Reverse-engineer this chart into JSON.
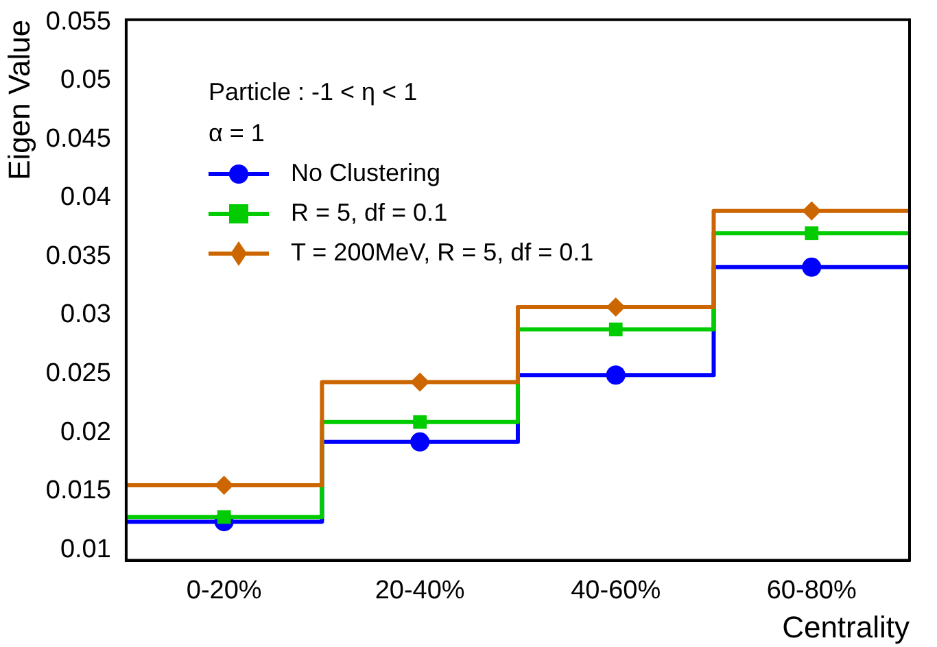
{
  "chart_data": {
    "type": "step",
    "xlabel": "Centrality",
    "ylabel": "Eigen Value",
    "categories": [
      "0-20%",
      "20-40%",
      "40-60%",
      "60-80%"
    ],
    "ylim": [
      0.0091,
      0.0552
    ],
    "yticks": [
      0.01,
      0.015,
      0.02,
      0.025,
      0.03,
      0.035,
      0.04,
      0.045,
      0.05,
      0.055
    ],
    "legend": "top left",
    "grid": false,
    "annotations": [
      "Particle : -1 < η < 1",
      "α = 1"
    ],
    "series": [
      {
        "name": "No Clustering",
        "color": "#0000ff",
        "marker": "circle",
        "values": [
          0.0124,
          0.0192,
          0.0249,
          0.0341
        ]
      },
      {
        "name": "R = 5, df = 0.1",
        "color": "#00cc00",
        "marker": "square",
        "values": [
          0.0128,
          0.0209,
          0.0288,
          0.037
        ]
      },
      {
        "name": "T = 200MeV, R = 5, df = 0.1",
        "color": "#cc6600",
        "marker": "diamond",
        "values": [
          0.0155,
          0.0243,
          0.0307,
          0.0389
        ]
      }
    ]
  }
}
